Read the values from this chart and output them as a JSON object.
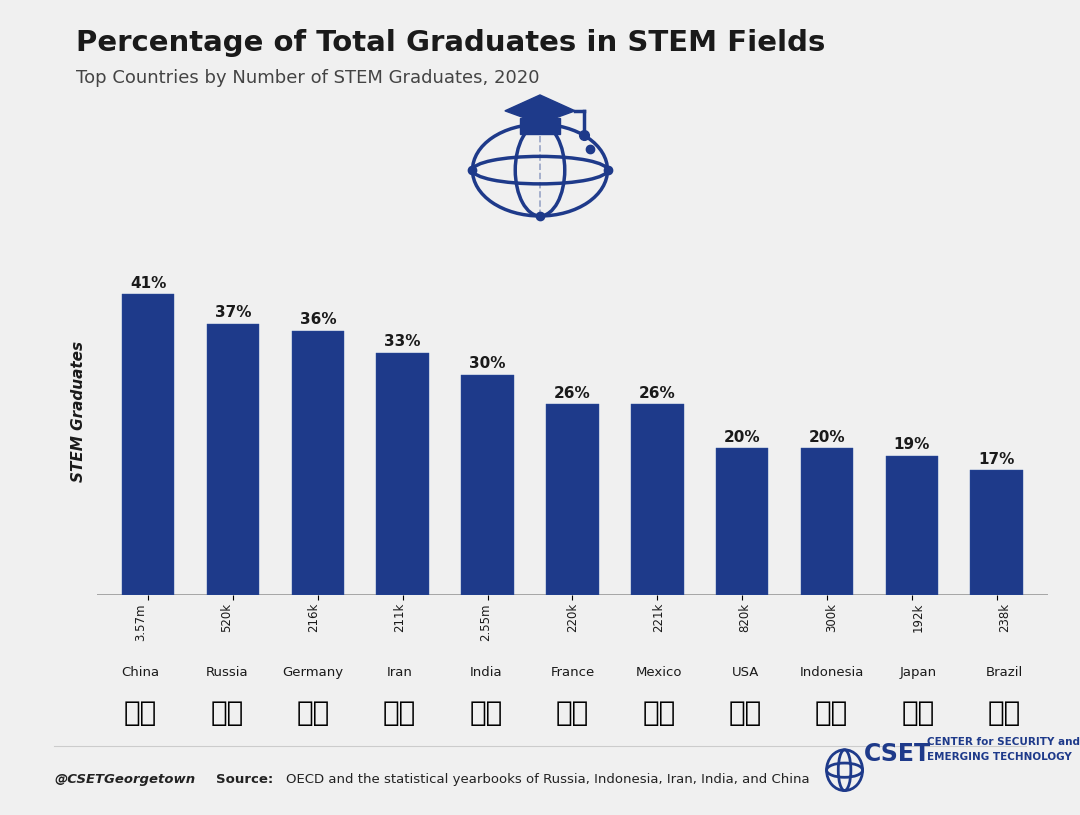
{
  "title": "Percentage of Total Graduates in STEM Fields",
  "subtitle": "Top Countries by Number of STEM Graduates, 2020",
  "ylabel": "STEM Graduates",
  "categories": [
    "China",
    "Russia",
    "Germany",
    "Iran",
    "India",
    "France",
    "Mexico",
    "USA",
    "Indonesia",
    "Japan",
    "Brazil"
  ],
  "percentages": [
    41,
    37,
    36,
    33,
    30,
    26,
    26,
    20,
    20,
    19,
    17
  ],
  "counts": [
    "3.57m",
    "520k",
    "216k",
    "211k",
    "2.55m",
    "220k",
    "221k",
    "820k",
    "300k",
    "192k",
    "238k"
  ],
  "bar_color": "#1e3a8a",
  "background_color": "#f0f0f0",
  "title_color": "#1a1a1a",
  "subtitle_color": "#444444",
  "label_color": "#1a1a1a",
  "count_color": "#1a1a1a",
  "footer_handle": "@CSETGeorgetown",
  "footer_source": "OECD and the statistical yearbooks of Russia, Indonesia, Iran, India, and China"
}
